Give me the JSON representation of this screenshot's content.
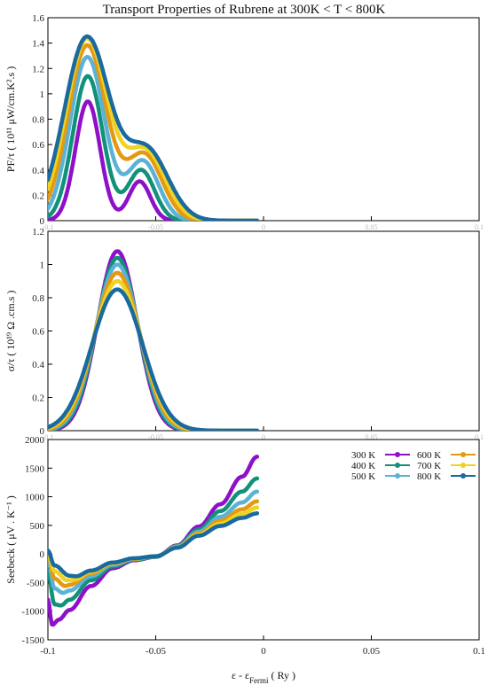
{
  "title": "Transport Properties of Rubrene at  300K < T < 800K",
  "colors": {
    "300 K": "#8e10c8",
    "400 K": "#12917a",
    "500 K": "#5ab2d6",
    "600 K": "#e39a12",
    "700 K": "#f0d220",
    "800 K": "#1a6aa0"
  },
  "chart_data": [
    {
      "type": "line",
      "panel": "top",
      "ylabel": "PF/τ  ( 10¹¹  μW/cm.K².s )",
      "xlim": [
        -0.1,
        0.1
      ],
      "ylim": [
        0,
        1.6
      ],
      "yticks": [
        "0",
        "0.2",
        "0.4",
        "0.6",
        "0.8",
        "1",
        "1.2",
        "1.4",
        "1.6"
      ],
      "xticks": [
        "-0.1",
        "-0.05",
        "0",
        "0.05",
        "0.1"
      ],
      "series": [
        {
          "name": "300 K",
          "peaks": [
            {
              "center": -0.0815,
              "height": 0.94,
              "width": 0.0057
            },
            {
              "center": -0.0575,
              "height": 0.31,
              "width": 0.005
            }
          ],
          "x": [
            -0.1,
            -0.09,
            -0.085,
            -0.0815,
            -0.078,
            -0.07,
            -0.066,
            -0.0575,
            -0.052,
            -0.045
          ],
          "y": [
            0.0,
            0.02,
            0.38,
            0.94,
            0.52,
            0.0,
            0.0,
            0.31,
            0.07,
            0.0
          ]
        },
        {
          "name": "400 K",
          "peaks": [
            {
              "center": -0.0815,
              "height": 1.14,
              "width": 0.0069
            },
            {
              "center": -0.0568,
              "height": 0.4,
              "width": 0.0062
            }
          ],
          "x": [
            -0.1,
            -0.09,
            -0.0815,
            -0.075,
            -0.07,
            -0.0568,
            -0.05,
            -0.045
          ],
          "y": [
            0.0,
            0.29,
            1.14,
            0.37,
            0.03,
            0.4,
            0.17,
            0.03
          ]
        },
        {
          "name": "500 K",
          "peaks": [
            {
              "center": -0.0817,
              "height": 1.29,
              "width": 0.008
            },
            {
              "center": -0.056,
              "height": 0.47,
              "width": 0.0073
            }
          ],
          "x": [
            -0.1,
            -0.09,
            -0.0817,
            -0.075,
            -0.07,
            -0.056,
            -0.05,
            -0.045
          ],
          "y": [
            0.01,
            0.48,
            1.29,
            0.58,
            0.1,
            0.47,
            0.29,
            0.08
          ]
        },
        {
          "name": "600 K",
          "peaks": [
            {
              "center": -0.0818,
              "height": 1.38,
              "width": 0.0089
            },
            {
              "center": -0.0553,
              "height": 0.52,
              "width": 0.0083
            }
          ],
          "x": [
            -0.1,
            -0.09,
            -0.0818,
            -0.075,
            -0.07,
            -0.0553,
            -0.05,
            -0.045
          ],
          "y": [
            0.02,
            0.6,
            1.38,
            0.76,
            0.2,
            0.52,
            0.4,
            0.13
          ]
        },
        {
          "name": "700 K",
          "peaks": [
            {
              "center": -0.0819,
              "height": 1.43,
              "width": 0.0097
            },
            {
              "center": -0.0548,
              "height": 0.545,
              "width": 0.0092
            }
          ],
          "x": [
            -0.1,
            -0.09,
            -0.0819,
            -0.075,
            -0.07,
            -0.0548,
            -0.05,
            -0.045
          ],
          "y": [
            0.03,
            0.69,
            1.43,
            0.87,
            0.31,
            0.545,
            0.46,
            0.19
          ]
        },
        {
          "name": "800 K",
          "peaks": [
            {
              "center": -0.082,
              "height": 1.44,
              "width": 0.0104
            },
            {
              "center": -0.0543,
              "height": 0.555,
              "width": 0.01
            }
          ],
          "x": [
            -0.1,
            -0.09,
            -0.082,
            -0.075,
            -0.07,
            -0.0543,
            -0.05,
            -0.045,
            -0.04
          ],
          "y": [
            0.05,
            0.77,
            1.44,
            0.96,
            0.41,
            0.555,
            0.5,
            0.24,
            0.03
          ]
        }
      ]
    },
    {
      "type": "line",
      "panel": "middle",
      "ylabel": "σ/τ  ( 10¹⁹  Ω .cm.s )",
      "xlim": [
        -0.1,
        0.1
      ],
      "ylim": [
        0,
        1.2
      ],
      "yticks": [
        "0",
        "0.2",
        "0.4",
        "0.6",
        "0.8",
        "1",
        "1.2"
      ],
      "xticks": [
        "-0.1",
        "-0.05",
        "0",
        "0.05",
        "0.1"
      ],
      "series": [
        {
          "name": "300 K",
          "peaks": [
            {
              "center": -0.0678,
              "height": 1.08,
              "width": 0.0092
            }
          ],
          "x": [
            -0.1,
            -0.08,
            -0.0678,
            -0.055,
            -0.04
          ],
          "y": [
            0.0,
            0.18,
            1.08,
            0.16,
            0.0
          ]
        },
        {
          "name": "400 K",
          "peaks": [
            {
              "center": -0.0678,
              "height": 1.04,
              "width": 0.0096
            }
          ],
          "x": [
            -0.1,
            -0.08,
            -0.0678,
            -0.055,
            -0.04
          ],
          "y": [
            0.0,
            0.2,
            1.04,
            0.18,
            0.0
          ]
        },
        {
          "name": "500 K",
          "peaks": [
            {
              "center": -0.0678,
              "height": 1.0,
              "width": 0.0101
            }
          ],
          "x": [
            -0.1,
            -0.08,
            -0.0678,
            -0.055,
            -0.04
          ],
          "y": [
            0.0,
            0.23,
            1.0,
            0.21,
            0.0
          ]
        },
        {
          "name": "600 K",
          "peaks": [
            {
              "center": -0.0678,
              "height": 0.95,
              "width": 0.0106
            }
          ],
          "x": [
            -0.1,
            -0.08,
            -0.0678,
            -0.055,
            -0.04
          ],
          "y": [
            0.0,
            0.25,
            0.95,
            0.23,
            0.01
          ]
        },
        {
          "name": "700 K",
          "peaks": [
            {
              "center": -0.0678,
              "height": 0.9,
              "width": 0.0112
            }
          ],
          "x": [
            -0.1,
            -0.08,
            -0.0678,
            -0.055,
            -0.04
          ],
          "y": [
            0.0,
            0.27,
            0.9,
            0.25,
            0.01
          ]
        },
        {
          "name": "800 K",
          "peaks": [
            {
              "center": -0.0678,
              "height": 0.85,
              "width": 0.0118
            }
          ],
          "x": [
            -0.1,
            -0.08,
            -0.0678,
            -0.055,
            -0.04
          ],
          "y": [
            0.0,
            0.29,
            0.85,
            0.27,
            0.02
          ]
        }
      ]
    },
    {
      "type": "line",
      "panel": "bottom",
      "ylabel": "Seebeck  ( μV . K⁻¹ )",
      "xlabel": "ε - ε",
      "xlabel_sub": "Fermi",
      "xlabel_unit": " ( Ry )",
      "xlim": [
        -0.1,
        0.1
      ],
      "ylim": [
        -1500,
        2000
      ],
      "yticks": [
        "-1500",
        "-1000",
        "-500",
        "0",
        "500",
        "1000",
        "1500",
        "2000"
      ],
      "xticks": [
        "-0.1",
        "-0.05",
        "0",
        "0.05",
        "0.1"
      ],
      "legend_position": "top-right",
      "legend": [
        "300 K",
        "400 K",
        "500 K",
        "600 K",
        "700 K",
        "800 K"
      ],
      "series": [
        {
          "name": "300 K",
          "x": [
            -0.1,
            -0.098,
            -0.095,
            -0.09,
            -0.08,
            -0.07,
            -0.06,
            -0.05,
            -0.04,
            -0.03,
            -0.02,
            -0.01,
            -0.003
          ],
          "y": [
            -800,
            -1240,
            -1150,
            -980,
            -560,
            -250,
            -110,
            -50,
            150,
            480,
            870,
            1350,
            1700
          ]
        },
        {
          "name": "400 K",
          "x": [
            -0.1,
            -0.097,
            -0.094,
            -0.09,
            -0.08,
            -0.07,
            -0.06,
            -0.05,
            -0.04,
            -0.03,
            -0.02,
            -0.01,
            -0.003
          ],
          "y": [
            -300,
            -880,
            -900,
            -800,
            -460,
            -220,
            -100,
            -50,
            140,
            430,
            750,
            1090,
            1320
          ]
        },
        {
          "name": "500 K",
          "x": [
            -0.1,
            -0.097,
            -0.093,
            -0.09,
            -0.08,
            -0.07,
            -0.06,
            -0.05,
            -0.04,
            -0.03,
            -0.02,
            -0.01,
            -0.003
          ],
          "y": [
            -100,
            -600,
            -680,
            -640,
            -390,
            -190,
            -90,
            -40,
            130,
            390,
            650,
            900,
            1090
          ]
        },
        {
          "name": "600 K",
          "x": [
            -0.1,
            -0.097,
            -0.092,
            -0.09,
            -0.08,
            -0.07,
            -0.06,
            -0.05,
            -0.04,
            -0.03,
            -0.02,
            -0.01,
            -0.003
          ],
          "y": [
            0,
            -430,
            -560,
            -540,
            -340,
            -170,
            -85,
            -40,
            120,
            360,
            580,
            780,
            920
          ]
        },
        {
          "name": "700 K",
          "x": [
            -0.1,
            -0.097,
            -0.091,
            -0.088,
            -0.08,
            -0.07,
            -0.06,
            -0.05,
            -0.04,
            -0.03,
            -0.02,
            -0.01,
            -0.003
          ],
          "y": [
            30,
            -300,
            -460,
            -450,
            -310,
            -160,
            -80,
            -40,
            115,
            340,
            530,
            700,
            810
          ]
        },
        {
          "name": "800 K",
          "x": [
            -0.1,
            -0.097,
            -0.09,
            -0.087,
            -0.08,
            -0.07,
            -0.06,
            -0.05,
            -0.04,
            -0.03,
            -0.02,
            -0.01,
            -0.003
          ],
          "y": [
            60,
            -200,
            -380,
            -390,
            -290,
            -150,
            -75,
            -40,
            110,
            320,
            490,
            630,
            710
          ]
        }
      ]
    }
  ]
}
